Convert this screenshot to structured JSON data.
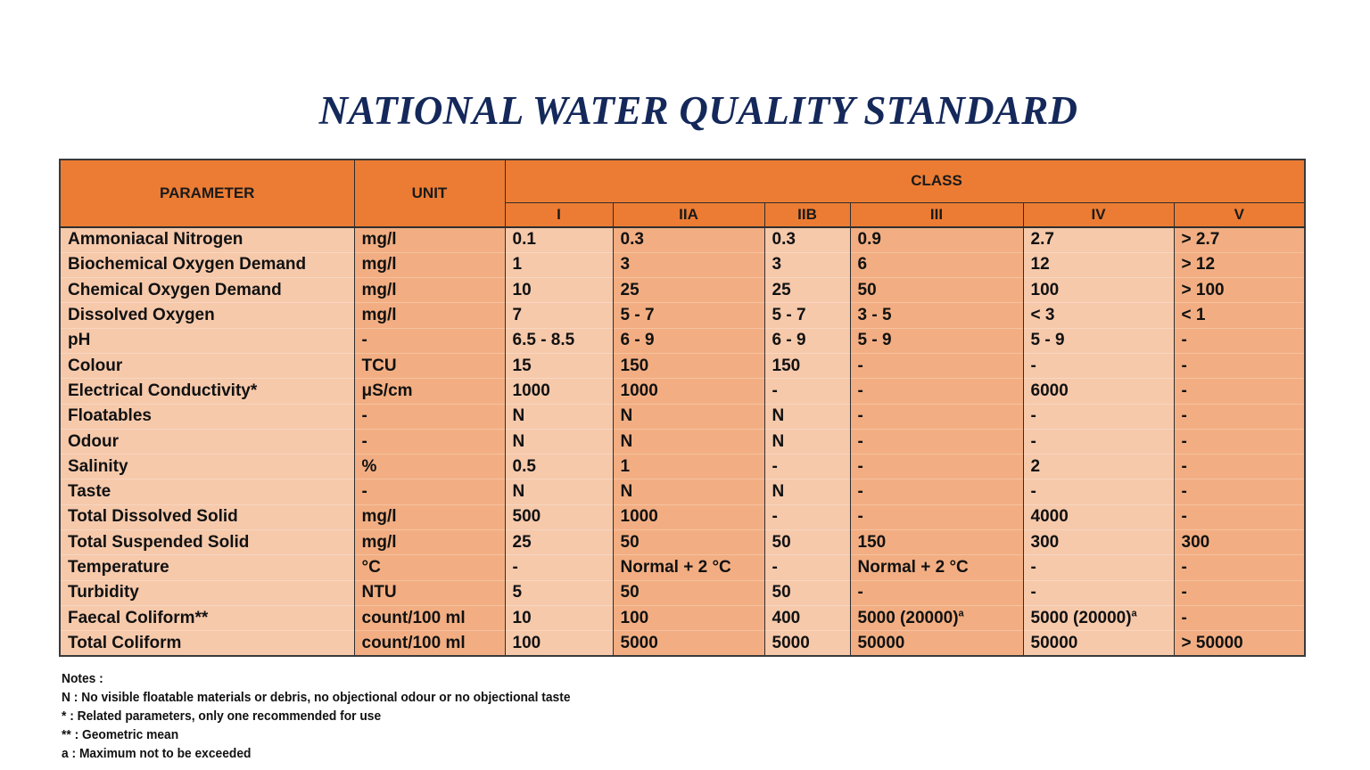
{
  "title": "NATIONAL WATER QUALITY STANDARD",
  "table": {
    "headers": {
      "parameter": "PARAMETER",
      "unit": "UNIT",
      "class_group": "CLASS",
      "classes": [
        "I",
        "IIA",
        "IIB",
        "III",
        "IV",
        "V"
      ]
    },
    "rows": [
      {
        "parameter": "Ammoniacal Nitrogen",
        "unit": "mg/l",
        "values": [
          "0.1",
          "0.3",
          "0.3",
          "0.9",
          "2.7",
          "> 2.7"
        ]
      },
      {
        "parameter": "Biochemical Oxygen Demand",
        "unit": "mg/l",
        "values": [
          "1",
          "3",
          "3",
          "6",
          "12",
          "> 12"
        ]
      },
      {
        "parameter": "Chemical Oxygen Demand",
        "unit": "mg/l",
        "values": [
          "10",
          "25",
          "25",
          "50",
          "100",
          "> 100"
        ]
      },
      {
        "parameter": "Dissolved Oxygen",
        "unit": "mg/l",
        "values": [
          "7",
          "5 - 7",
          "5 - 7",
          "3 - 5",
          "< 3",
          "< 1"
        ]
      },
      {
        "parameter": "pH",
        "unit": "-",
        "values": [
          "6.5 - 8.5",
          "6 - 9",
          "6 - 9",
          "5 - 9",
          "5 - 9",
          "-"
        ]
      },
      {
        "parameter": "Colour",
        "unit": "TCU",
        "values": [
          "15",
          "150",
          "150",
          "-",
          "-",
          "-"
        ]
      },
      {
        "parameter": "Electrical Conductivity*",
        "unit": "μS/cm",
        "values": [
          "1000",
          "1000",
          "-",
          "-",
          "6000",
          "-"
        ]
      },
      {
        "parameter": "Floatables",
        "unit": "-",
        "values": [
          "N",
          "N",
          "N",
          "-",
          "-",
          "-"
        ]
      },
      {
        "parameter": "Odour",
        "unit": "-",
        "values": [
          "N",
          "N",
          "N",
          "-",
          "-",
          "-"
        ]
      },
      {
        "parameter": "Salinity",
        "unit": "%",
        "values": [
          "0.5",
          "1",
          "-",
          "-",
          "2",
          "-"
        ]
      },
      {
        "parameter": "Taste",
        "unit": "-",
        "values": [
          "N",
          "N",
          "N",
          "-",
          "-",
          "-"
        ]
      },
      {
        "parameter": "Total Dissolved Solid",
        "unit": "mg/l",
        "values": [
          "500",
          "1000",
          "-",
          "-",
          "4000",
          "-"
        ]
      },
      {
        "parameter": "Total Suspended Solid",
        "unit": "mg/l",
        "values": [
          "25",
          "50",
          "50",
          "150",
          "300",
          "300"
        ]
      },
      {
        "parameter": "Temperature",
        "unit": "°C",
        "values": [
          "-",
          "Normal + 2 °C",
          "-",
          "Normal + 2 °C",
          "-",
          "-"
        ]
      },
      {
        "parameter": "Turbidity",
        "unit": "NTU",
        "values": [
          "5",
          "50",
          "50",
          "-",
          "-",
          "-"
        ]
      },
      {
        "parameter": "Faecal Coliform**",
        "unit": "count/100 ml",
        "values": [
          "10",
          "100",
          "400",
          "5000 (20000)",
          "5000 (20000)",
          "-"
        ],
        "superscripts": [
          "",
          "",
          "",
          "a",
          "a",
          ""
        ]
      },
      {
        "parameter": "Total Coliform",
        "unit": "count/100 ml",
        "values": [
          "100",
          "5000",
          "5000",
          "50000",
          "50000",
          "> 50000"
        ]
      }
    ]
  },
  "notes": {
    "heading": "Notes :",
    "items": [
      "N  :  No visible floatable materials or debris, no objectional odour or no objectional taste",
      "*   :  Related parameters, only one recommended for use",
      "**  :  Geometric mean",
      "a  :  Maximum not to be exceeded"
    ]
  },
  "colors": {
    "header_orange": "#ec7c33",
    "cell_light": "#f6c9ab",
    "cell_dark": "#f2ae82",
    "title_navy": "#14285a"
  }
}
